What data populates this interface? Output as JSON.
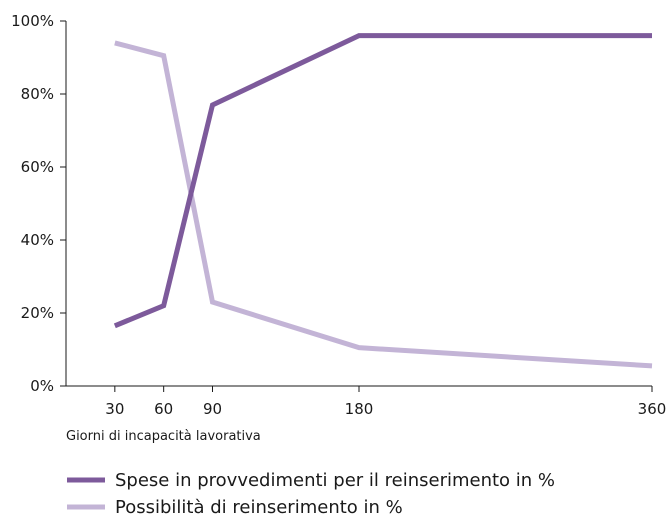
{
  "chart_data": {
    "type": "line",
    "title": "",
    "xlabel": "Giorni di incapacità lavorativa",
    "ylabel": "",
    "x": [
      30,
      60,
      90,
      180,
      360
    ],
    "x_tick_labels": [
      "30",
      "60",
      "90",
      "180",
      "360"
    ],
    "xlim": [
      0,
      360
    ],
    "ylim": [
      0,
      100
    ],
    "y_ticks": [
      0,
      20,
      40,
      60,
      80,
      100
    ],
    "y_tick_labels": [
      "0%",
      "20%",
      "40%",
      "60%",
      "80%",
      "100%"
    ],
    "grid": false,
    "legend_position": "bottom-left",
    "series": [
      {
        "name": "Spese in provvedimenti per il reinserimento in %",
        "color": "#7d5a9b",
        "values": [
          16.5,
          22,
          77,
          96,
          96
        ]
      },
      {
        "name": "Possibilità di reinserimento in %",
        "color": "#c3b4d6",
        "values": [
          94,
          90.5,
          23,
          10.5,
          5.5
        ]
      }
    ]
  }
}
